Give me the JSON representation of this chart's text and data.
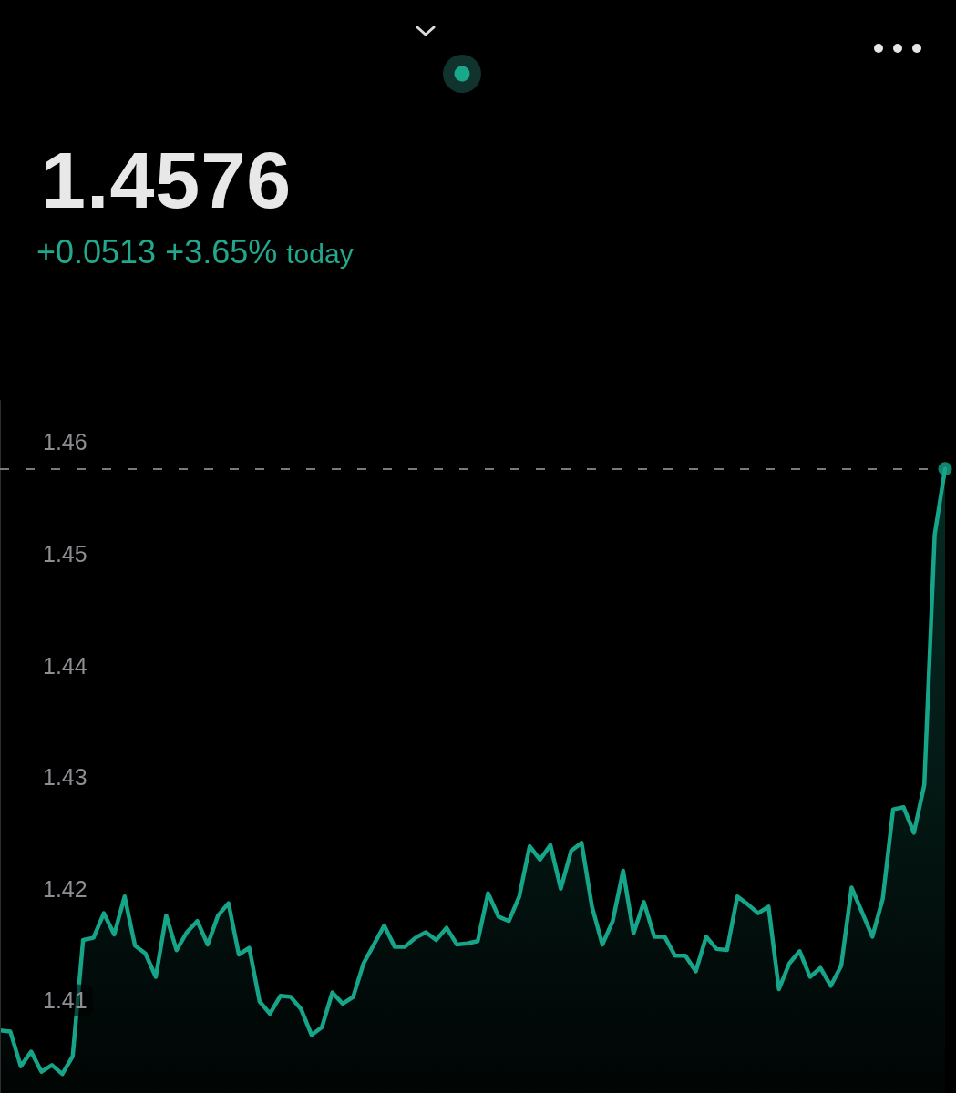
{
  "chart_data": {
    "type": "area",
    "title": "1.4576",
    "subtitle": "+0.0513 +3.65% today",
    "categories": [
      null,
      null,
      null,
      null,
      null,
      null,
      null,
      null,
      null,
      null,
      null,
      null,
      null,
      null,
      null,
      null,
      null,
      null,
      null,
      null,
      null,
      null,
      null,
      null,
      null,
      null,
      null,
      null,
      null,
      null,
      null,
      null,
      null,
      null,
      null,
      null,
      null,
      null,
      null,
      null,
      null,
      null,
      null,
      null,
      null,
      null,
      null,
      null,
      null,
      null,
      null,
      null,
      null,
      null,
      null,
      null,
      null,
      null,
      null,
      null,
      null,
      null,
      null,
      null,
      null,
      null,
      null,
      null,
      null,
      null,
      null,
      null,
      null,
      null,
      null,
      null,
      null,
      null,
      null,
      null,
      null,
      null,
      null,
      null,
      null,
      null,
      null,
      null,
      null,
      null,
      null,
      null
    ],
    "series": [
      {
        "color": "#17a589",
        "values": [
          1.4073,
          1.4072,
          1.4041,
          1.4054,
          1.4036,
          1.4042,
          1.4034,
          1.405,
          1.4154,
          1.4156,
          1.4178,
          1.4159,
          1.4193,
          1.4149,
          1.4142,
          1.4121,
          1.4176,
          1.4145,
          1.4161,
          1.4171,
          1.415,
          1.4176,
          1.4187,
          1.4141,
          1.4147,
          1.4099,
          1.4088,
          1.4104,
          1.4103,
          1.4092,
          1.4069,
          1.4076,
          1.4107,
          1.4097,
          1.4103,
          1.4133,
          1.415,
          1.4167,
          1.4148,
          1.4148,
          1.4156,
          1.4161,
          1.4154,
          1.4165,
          1.415,
          1.4151,
          1.4153,
          1.4196,
          1.4175,
          1.4171,
          1.4193,
          1.4238,
          1.4226,
          1.4239,
          1.42,
          1.4234,
          1.4241,
          1.4184,
          1.415,
          1.4171,
          1.4216,
          1.416,
          1.4188,
          1.4157,
          1.4157,
          1.414,
          1.414,
          1.4126,
          1.4157,
          1.4146,
          1.4145,
          1.4193,
          1.4186,
          1.4178,
          1.4184,
          1.411,
          1.4133,
          1.4144,
          1.4121,
          1.4129,
          1.4113,
          1.4131,
          1.4201,
          1.4179,
          1.4157,
          1.4191,
          1.4271,
          1.4273,
          1.425,
          1.4293,
          1.4517,
          1.4576
        ]
      },
      {
        "type": "scatter",
        "color": "#17a589",
        "marker": "circle",
        "values": [
          null,
          null,
          null,
          null,
          null,
          null,
          null,
          null,
          null,
          null,
          null,
          null,
          null,
          null,
          null,
          null,
          null,
          null,
          null,
          null,
          null,
          null,
          null,
          null,
          null,
          null,
          null,
          null,
          null,
          null,
          null,
          null,
          null,
          null,
          null,
          null,
          null,
          null,
          null,
          null,
          null,
          null,
          null,
          null,
          null,
          null,
          null,
          null,
          null,
          null,
          null,
          null,
          null,
          null,
          null,
          null,
          null,
          null,
          null,
          null,
          null,
          null,
          null,
          null,
          null,
          null,
          null,
          null,
          null,
          null,
          null,
          null,
          null,
          null,
          null,
          null,
          null,
          null,
          null,
          null,
          null,
          null,
          null,
          null,
          null,
          null,
          null,
          null,
          null,
          null,
          null,
          1.4576
        ]
      }
    ],
    "ylim": [
      1.4017,
      1.4637
    ],
    "yticks": [
      1.41,
      1.42,
      1.43,
      1.44,
      1.45,
      1.46
    ],
    "tick_labels": "y",
    "ref_lines": [
      {
        "axis": "y",
        "value": 1.4576,
        "color": "#7a7a7a",
        "line_style": "dashed"
      }
    ]
  }
}
